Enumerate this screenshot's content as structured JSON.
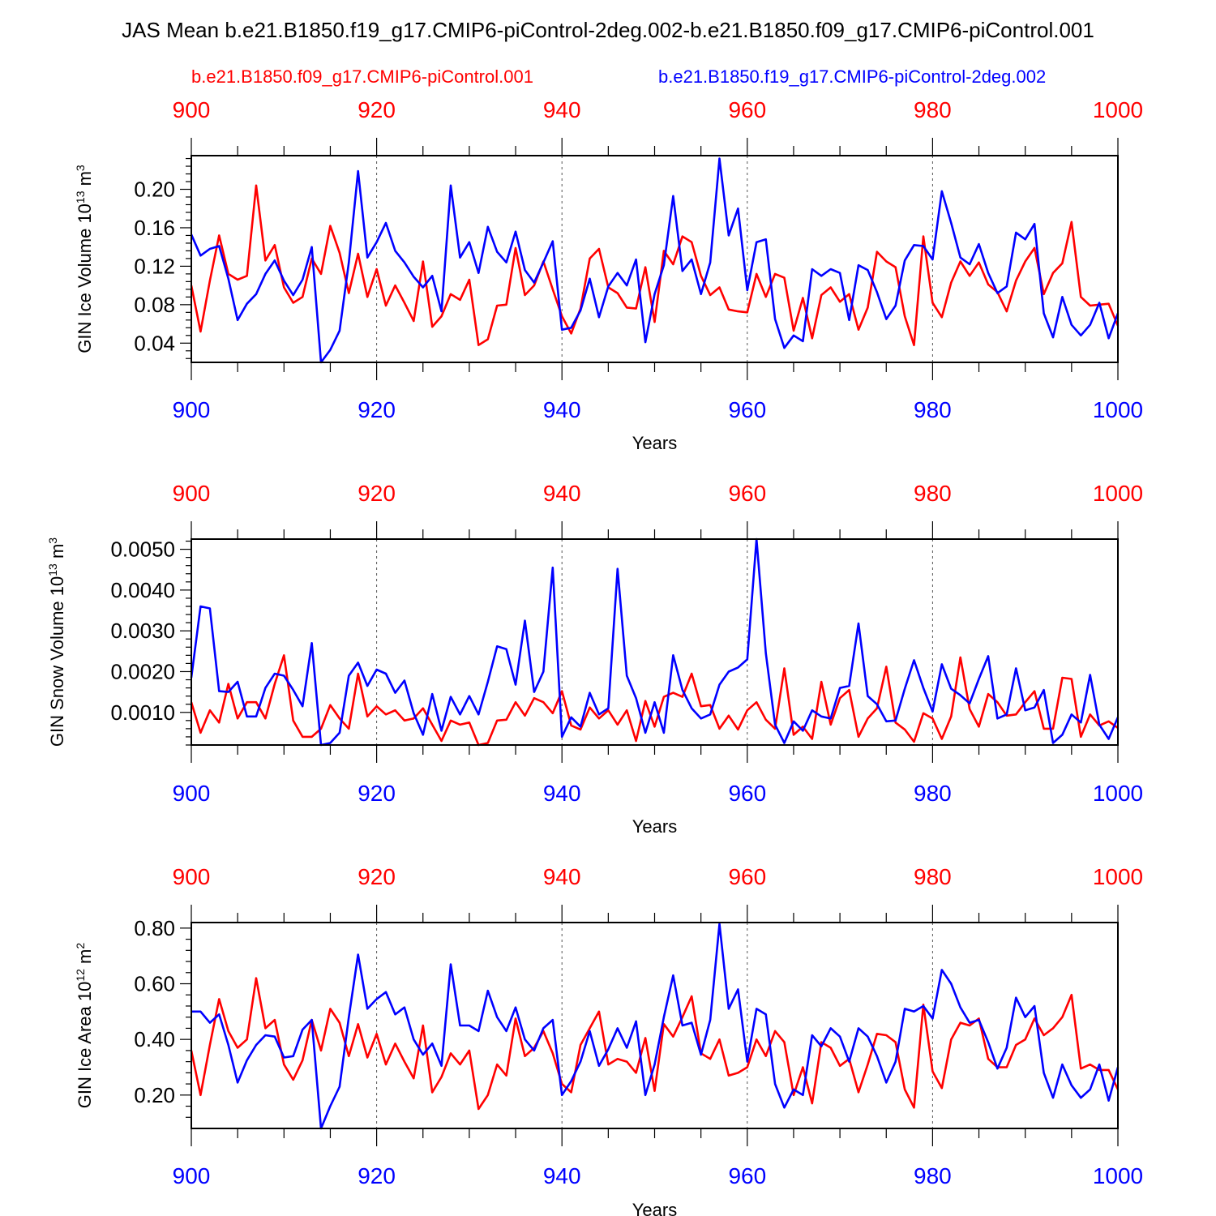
{
  "title": "JAS Mean b.e21.B1850.f19_g17.CMIP6-piControl-2deg.002-b.e21.B1850.f09_g17.CMIP6-piControl.001",
  "legend": {
    "red": "b.e21.B1850.f09_g17.CMIP6-piControl.001",
    "blue": "b.e21.B1850.f19_g17.CMIP6-piControl-2deg.002"
  },
  "colors": {
    "red": "#ff0000",
    "blue": "#0000ff",
    "axis": "#000000"
  },
  "chart_data": [
    {
      "type": "line",
      "ylabel_main": "GIN Ice Volume 10",
      "ylabel_exp": "13",
      "ylabel_unit": " m",
      "ylabel_unit_exp": "3",
      "xlabel": "Years",
      "xlim": [
        900,
        1000
      ],
      "ylim": [
        0.02,
        0.235
      ],
      "yticks": [
        0.04,
        0.08,
        0.12,
        0.16,
        0.2
      ],
      "ytick_labels": [
        "0.04",
        "0.08",
        "0.12",
        "0.16",
        "0.20"
      ],
      "xticks": [
        900,
        920,
        940,
        960,
        980,
        1000
      ],
      "xtick_labels": [
        "900",
        "920",
        "940",
        "960",
        "980",
        "1000"
      ],
      "x_start": 900,
      "series": [
        {
          "name": "b.e21.B1850.f09_g17.CMIP6-piControl.001",
          "color": "#ff0000",
          "values": [
            0.1,
            0.052,
            0.105,
            0.152,
            0.112,
            0.106,
            0.11,
            0.204,
            0.126,
            0.142,
            0.098,
            0.082,
            0.088,
            0.128,
            0.112,
            0.162,
            0.134,
            0.092,
            0.133,
            0.088,
            0.117,
            0.079,
            0.1,
            0.082,
            0.063,
            0.125,
            0.057,
            0.068,
            0.091,
            0.085,
            0.106,
            0.038,
            0.044,
            0.079,
            0.08,
            0.139,
            0.09,
            0.1,
            0.125,
            0.096,
            0.068,
            0.05,
            0.076,
            0.128,
            0.138,
            0.098,
            0.092,
            0.077,
            0.076,
            0.119,
            0.062,
            0.136,
            0.122,
            0.151,
            0.145,
            0.11,
            0.09,
            0.098,
            0.075,
            0.073,
            0.072,
            0.112,
            0.088,
            0.112,
            0.108,
            0.053,
            0.087,
            0.045,
            0.09,
            0.098,
            0.083,
            0.091,
            0.054,
            0.077,
            0.135,
            0.125,
            0.119,
            0.068,
            0.038,
            0.151,
            0.082,
            0.067,
            0.103,
            0.125,
            0.11,
            0.124,
            0.101,
            0.093,
            0.073,
            0.105,
            0.125,
            0.139,
            0.091,
            0.113,
            0.123,
            0.166,
            0.088,
            0.079,
            0.08,
            0.081,
            0.058
          ]
        },
        {
          "name": "b.e21.B1850.f19_g17.CMIP6-piControl-2deg.002",
          "color": "#0000ff",
          "values": [
            0.153,
            0.131,
            0.138,
            0.141,
            0.107,
            0.064,
            0.081,
            0.091,
            0.112,
            0.126,
            0.105,
            0.09,
            0.106,
            0.14,
            0.02,
            0.033,
            0.053,
            0.124,
            0.219,
            0.129,
            0.145,
            0.165,
            0.136,
            0.124,
            0.109,
            0.098,
            0.11,
            0.073,
            0.204,
            0.129,
            0.145,
            0.113,
            0.161,
            0.135,
            0.124,
            0.156,
            0.116,
            0.103,
            0.124,
            0.146,
            0.054,
            0.056,
            0.074,
            0.107,
            0.067,
            0.099,
            0.113,
            0.1,
            0.127,
            0.041,
            0.091,
            0.121,
            0.193,
            0.115,
            0.127,
            0.091,
            0.124,
            0.232,
            0.152,
            0.18,
            0.095,
            0.145,
            0.148,
            0.065,
            0.035,
            0.048,
            0.042,
            0.117,
            0.11,
            0.117,
            0.113,
            0.064,
            0.121,
            0.116,
            0.093,
            0.065,
            0.079,
            0.126,
            0.142,
            0.141,
            0.127,
            0.198,
            0.165,
            0.129,
            0.122,
            0.143,
            0.113,
            0.092,
            0.099,
            0.155,
            0.148,
            0.164,
            0.071,
            0.046,
            0.088,
            0.059,
            0.048,
            0.059,
            0.082,
            0.045,
            0.071
          ]
        }
      ]
    },
    {
      "type": "line",
      "ylabel_main": "GIN Snow Volume 10",
      "ylabel_exp": "13",
      "ylabel_unit": " m",
      "ylabel_unit_exp": "3",
      "xlabel": "Years",
      "xlim": [
        900,
        1000
      ],
      "ylim": [
        0.0002,
        0.00525
      ],
      "yticks": [
        0.001,
        0.002,
        0.003,
        0.004,
        0.005
      ],
      "ytick_labels": [
        "0.0010",
        "0.0020",
        "0.0030",
        "0.0040",
        "0.0050"
      ],
      "xticks": [
        900,
        920,
        940,
        960,
        980,
        1000
      ],
      "xtick_labels": [
        "900",
        "920",
        "940",
        "960",
        "980",
        "1000"
      ],
      "x_start": 900,
      "series": [
        {
          "name": "b.e21.B1850.f09_g17.CMIP6-piControl.001",
          "color": "#ff0000",
          "values": [
            0.00125,
            0.0005,
            0.00105,
            0.00075,
            0.0017,
            0.00085,
            0.00125,
            0.00125,
            0.00085,
            0.0017,
            0.0024,
            0.0008,
            0.0004,
            0.0004,
            0.0006,
            0.00118,
            0.00085,
            0.0006,
            0.00195,
            0.0009,
            0.00115,
            0.00095,
            0.00105,
            0.0008,
            0.00085,
            0.0011,
            0.0007,
            0.0003,
            0.0008,
            0.0007,
            0.00075,
            0.0002,
            0.00025,
            0.0008,
            0.00082,
            0.00125,
            0.00092,
            0.00135,
            0.00125,
            0.00098,
            0.00152,
            0.00068,
            0.00058,
            0.00112,
            0.00085,
            0.00105,
            0.0007,
            0.00105,
            0.0003,
            0.00128,
            0.00065,
            0.00138,
            0.00148,
            0.00138,
            0.00195,
            0.00115,
            0.00118,
            0.0006,
            0.00092,
            0.00058,
            0.00105,
            0.00125,
            0.00082,
            0.0006,
            0.00208,
            0.00045,
            0.00065,
            0.00035,
            0.00175,
            0.0007,
            0.00135,
            0.00155,
            0.0004,
            0.00085,
            0.0011,
            0.00212,
            0.00075,
            0.00058,
            0.00028,
            0.00098,
            0.00085,
            0.00035,
            0.0009,
            0.00235,
            0.00108,
            0.00065,
            0.00145,
            0.00125,
            0.00092,
            0.00095,
            0.00125,
            0.00152,
            0.0006,
            0.0006,
            0.00185,
            0.00182,
            0.0004,
            0.00095,
            0.00068,
            0.00078,
            0.00062
          ]
        },
        {
          "name": "b.e21.B1850.f19_g17.CMIP6-piControl-2deg.002",
          "color": "#0000ff",
          "values": [
            0.00185,
            0.0036,
            0.00355,
            0.00152,
            0.0015,
            0.00175,
            0.0009,
            0.0009,
            0.0016,
            0.00195,
            0.0019,
            0.00155,
            0.00115,
            0.0027,
            0.0002,
            0.00025,
            0.0005,
            0.0019,
            0.00222,
            0.00165,
            0.00205,
            0.00195,
            0.00148,
            0.00178,
            0.00098,
            0.00045,
            0.00145,
            0.00055,
            0.00138,
            0.00095,
            0.0014,
            0.00095,
            0.00175,
            0.00262,
            0.00255,
            0.00168,
            0.00325,
            0.0015,
            0.002,
            0.00455,
            0.0004,
            0.00088,
            0.00065,
            0.00148,
            0.00095,
            0.0011,
            0.00452,
            0.0019,
            0.00135,
            0.0005,
            0.00125,
            0.0005,
            0.0024,
            0.00155,
            0.0011,
            0.00085,
            0.00095,
            0.00168,
            0.002,
            0.0021,
            0.0023,
            0.00525,
            0.00245,
            0.0007,
            0.00025,
            0.00078,
            0.00055,
            0.00105,
            0.0009,
            0.00085,
            0.0016,
            0.00165,
            0.00318,
            0.0014,
            0.0012,
            0.00078,
            0.0008,
            0.00158,
            0.00228,
            0.0016,
            0.00102,
            0.00218,
            0.00158,
            0.00142,
            0.00122,
            0.00182,
            0.00238,
            0.00085,
            0.00095,
            0.00208,
            0.00105,
            0.00112,
            0.00155,
            0.00025,
            0.00045,
            0.00095,
            0.00075,
            0.00192,
            0.0007,
            0.00035,
            0.00088
          ]
        }
      ]
    },
    {
      "type": "line",
      "ylabel_main": "GIN Ice Area 10",
      "ylabel_exp": "12",
      "ylabel_unit": " m",
      "ylabel_unit_exp": "2",
      "xlabel": "Years",
      "xlim": [
        900,
        1000
      ],
      "ylim": [
        0.08,
        0.82
      ],
      "yticks": [
        0.2,
        0.4,
        0.6,
        0.8
      ],
      "ytick_labels": [
        "0.20",
        "0.40",
        "0.60",
        "0.80"
      ],
      "xticks": [
        900,
        920,
        940,
        960,
        980,
        1000
      ],
      "xtick_labels": [
        "900",
        "920",
        "940",
        "960",
        "980",
        "1000"
      ],
      "x_start": 900,
      "series": [
        {
          "name": "b.e21.B1850.f09_g17.CMIP6-piControl.001",
          "color": "#ff0000",
          "values": [
            0.36,
            0.2,
            0.38,
            0.545,
            0.43,
            0.37,
            0.4,
            0.62,
            0.44,
            0.47,
            0.31,
            0.255,
            0.325,
            0.47,
            0.36,
            0.51,
            0.46,
            0.34,
            0.455,
            0.335,
            0.42,
            0.31,
            0.385,
            0.32,
            0.26,
            0.45,
            0.21,
            0.265,
            0.35,
            0.31,
            0.36,
            0.15,
            0.2,
            0.31,
            0.27,
            0.475,
            0.34,
            0.37,
            0.43,
            0.35,
            0.24,
            0.21,
            0.38,
            0.44,
            0.5,
            0.31,
            0.33,
            0.32,
            0.28,
            0.405,
            0.215,
            0.455,
            0.41,
            0.48,
            0.555,
            0.35,
            0.33,
            0.4,
            0.27,
            0.28,
            0.3,
            0.4,
            0.34,
            0.43,
            0.39,
            0.2,
            0.3,
            0.17,
            0.39,
            0.37,
            0.305,
            0.33,
            0.21,
            0.31,
            0.42,
            0.415,
            0.39,
            0.22,
            0.155,
            0.525,
            0.285,
            0.225,
            0.4,
            0.46,
            0.45,
            0.475,
            0.33,
            0.3,
            0.3,
            0.38,
            0.4,
            0.475,
            0.415,
            0.44,
            0.48,
            0.56,
            0.295,
            0.31,
            0.29,
            0.29,
            0.22
          ]
        },
        {
          "name": "b.e21.B1850.f19_g17.CMIP6-piControl-2deg.002",
          "color": "#0000ff",
          "values": [
            0.5,
            0.5,
            0.46,
            0.49,
            0.38,
            0.245,
            0.325,
            0.38,
            0.415,
            0.41,
            0.335,
            0.34,
            0.435,
            0.47,
            0.08,
            0.16,
            0.23,
            0.48,
            0.705,
            0.51,
            0.545,
            0.57,
            0.49,
            0.515,
            0.4,
            0.345,
            0.385,
            0.305,
            0.67,
            0.45,
            0.45,
            0.43,
            0.575,
            0.48,
            0.43,
            0.515,
            0.4,
            0.36,
            0.44,
            0.47,
            0.2,
            0.25,
            0.32,
            0.43,
            0.305,
            0.365,
            0.44,
            0.37,
            0.465,
            0.2,
            0.31,
            0.48,
            0.63,
            0.45,
            0.46,
            0.345,
            0.47,
            0.815,
            0.51,
            0.58,
            0.32,
            0.51,
            0.49,
            0.24,
            0.155,
            0.22,
            0.2,
            0.415,
            0.375,
            0.44,
            0.41,
            0.32,
            0.44,
            0.41,
            0.34,
            0.245,
            0.32,
            0.51,
            0.5,
            0.52,
            0.475,
            0.65,
            0.6,
            0.515,
            0.46,
            0.47,
            0.39,
            0.295,
            0.37,
            0.55,
            0.48,
            0.52,
            0.28,
            0.19,
            0.31,
            0.235,
            0.19,
            0.22,
            0.31,
            0.18,
            0.3
          ]
        }
      ]
    }
  ]
}
